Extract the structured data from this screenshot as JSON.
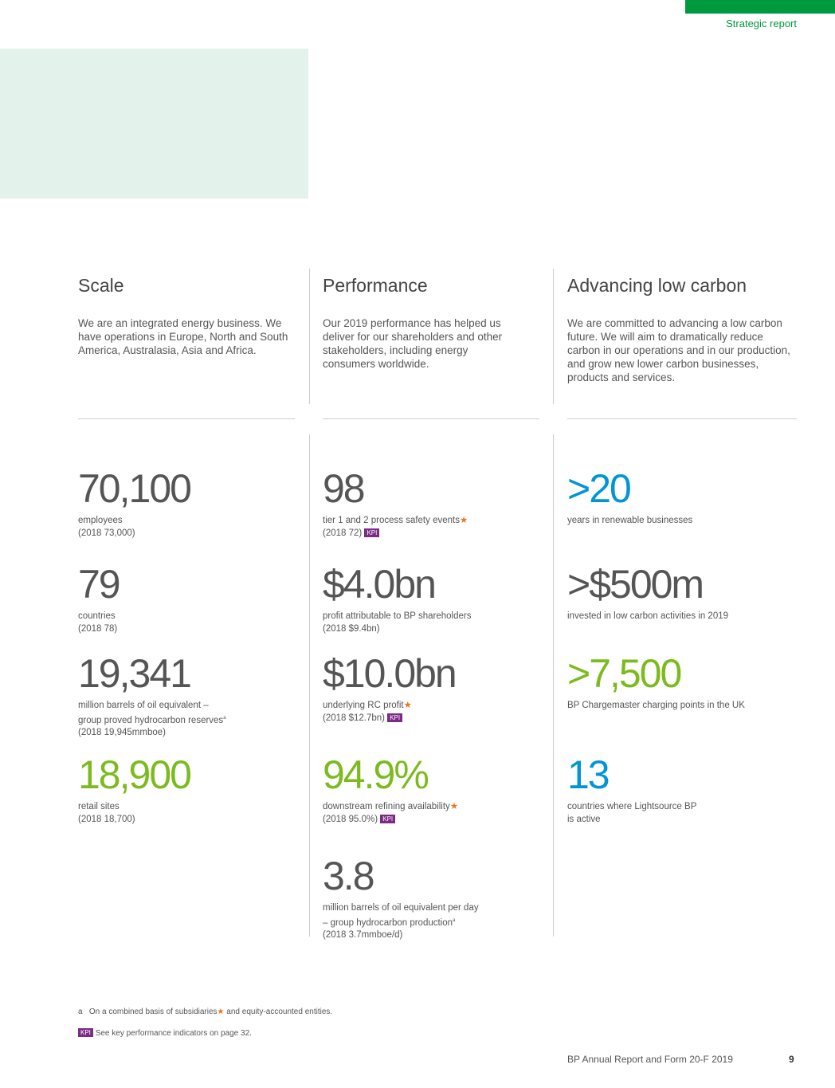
{
  "header": {
    "section": "Strategic report",
    "bar_color": "#009a3e"
  },
  "columns": [
    {
      "title": "Scale",
      "body": "We are an integrated energy business. We have operations in Europe, North and South America, Australasia, Asia and Africa."
    },
    {
      "title": "Performance",
      "body": "Our 2019 performance has helped us deliver for our shareholders and other stakeholders, including energy consumers worldwide."
    },
    {
      "title": "Advancing low carbon",
      "body": "We are committed to advancing a low carbon future. We will aim to dramatically reduce carbon in our operations and in our production, and grow new lower carbon businesses, products and services."
    }
  ],
  "stats": {
    "scale": [
      {
        "value": "70,100",
        "color": "grey",
        "line1": "employees",
        "line2": "(2018 73,000)"
      },
      {
        "value": "79",
        "color": "grey",
        "line1": "countries",
        "line2": "(2018 78)"
      },
      {
        "value": "19,341",
        "color": "grey",
        "line1": "million barrels of oil equivalent –",
        "line1b": "group proved hydrocarbon reserves",
        "sup": "a",
        "line2": "(2018 19,945mmboe)"
      },
      {
        "value": "18,900",
        "color": "green",
        "line1": "retail sites",
        "line2": "(2018 18,700)"
      }
    ],
    "performance": [
      {
        "value": "98",
        "line1": "tier 1 and 2 process safety events",
        "line2": "(2018 72)",
        "kpi": "KPI"
      },
      {
        "value": "$4.0bn",
        "line1": "profit attributable to BP shareholders",
        "line2": "(2018 $9.4bn)"
      },
      {
        "value": "$10.0bn",
        "line1": "underlying RC profit",
        "line2": "(2018 $12.7bn)",
        "kpi": "KPI"
      },
      {
        "value": "94.9%",
        "line1": "downstream refining availability",
        "line2": "(2018 95.0%)",
        "kpi": "KPI"
      },
      {
        "value": "3.8",
        "line1": "million barrels of oil equivalent per day",
        "line1b": "– group hydrocarbon production",
        "sup": "a",
        "line2": "(2018 3.7mmboe/d)"
      }
    ],
    "low_carbon": [
      {
        "value": ">20",
        "line1": "years in renewable businesses"
      },
      {
        "value": ">$500m",
        "line1": "invested in low carbon activities in 2019"
      },
      {
        "value": ">7,500",
        "line1": "BP Chargemaster charging points in the UK"
      },
      {
        "value": "13",
        "line1": "countries where Lightsource BP",
        "line2": "is active"
      }
    ]
  },
  "footnotes": {
    "a_marker": "a",
    "a_text1": "On a combined basis of subsidiaries",
    "a_text2": " and equity-accounted entities.",
    "kpi_label": "KPI",
    "kpi_text": "See key performance indicators on page 32."
  },
  "footer": {
    "title": "BP Annual Report and Form 20-F 2019",
    "page": "9"
  },
  "colors": {
    "grey": "#555555",
    "blue": "#0096d6",
    "green": "#7cbb1e",
    "kpi": "#7b2a86",
    "star": "#e87722"
  }
}
